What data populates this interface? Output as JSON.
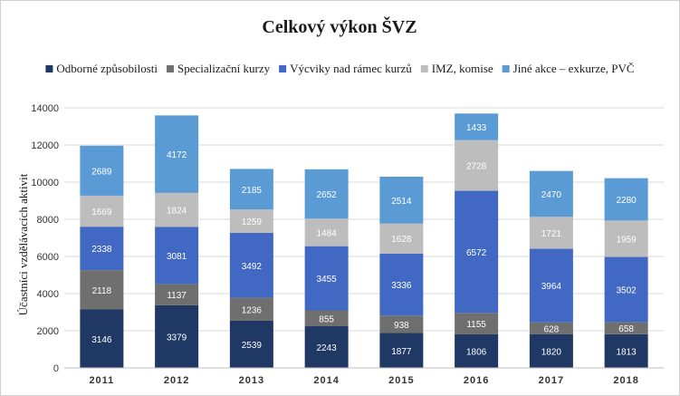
{
  "chart_data": {
    "type": "bar",
    "stacked": true,
    "title": "Celkový výkon ŠVZ",
    "xlabel": "",
    "ylabel": "Účastníci vzdělávacích aktivit",
    "ylim": [
      0,
      14000
    ],
    "ytick_step": 2000,
    "yticks": [
      "0",
      "2000",
      "4000",
      "6000",
      "8000",
      "10000",
      "12000",
      "14000"
    ],
    "grid": true,
    "legend_position": "top",
    "categories": [
      "2011",
      "2012",
      "2013",
      "2014",
      "2015",
      "2016",
      "2017",
      "2018"
    ],
    "series": [
      {
        "name": "Odborné způsobilosti",
        "color": "#203864",
        "label_color": "#ffffff",
        "values": [
          3146,
          3379,
          2539,
          2243,
          1877,
          1806,
          1820,
          1813
        ]
      },
      {
        "name": "Specializační kurzy",
        "color": "#6f6f6f",
        "label_color": "#ffffff",
        "values": [
          2118,
          1137,
          1236,
          855,
          938,
          1155,
          628,
          658
        ]
      },
      {
        "name": "Výcviky nad rámec kurzů",
        "color": "#4168c2",
        "label_color": "#ffffff",
        "values": [
          2338,
          3081,
          3492,
          3455,
          3336,
          6572,
          3964,
          3502
        ]
      },
      {
        "name": "IMZ, komise",
        "color": "#bdbdbd",
        "label_color": "#ffffff",
        "values": [
          1669,
          1824,
          1259,
          1484,
          1628,
          2728,
          1721,
          1959
        ]
      },
      {
        "name": "Jiné akce – exkurze, PVČ",
        "color": "#5b9bd5",
        "label_color": "#ffffff",
        "values": [
          2689,
          4172,
          2185,
          2652,
          2514,
          1433,
          2470,
          2280
        ]
      }
    ]
  }
}
